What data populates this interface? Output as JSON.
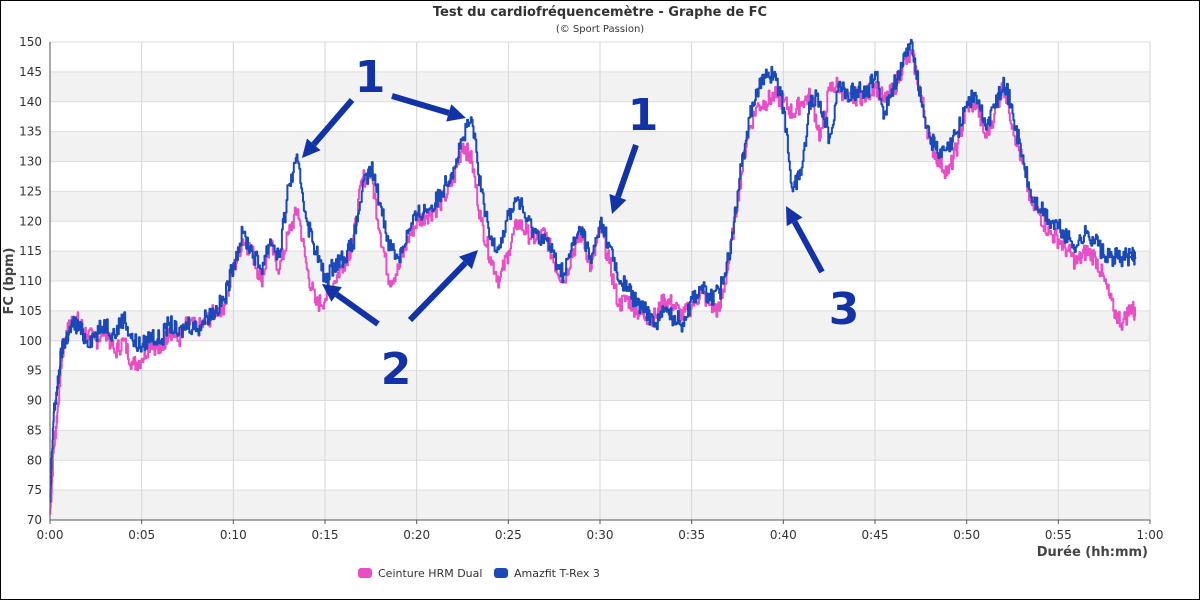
{
  "chart_data": {
    "type": "line",
    "title": "Test du cardiofréquencemètre - Graphe de FC",
    "subtitle": "(© Sport Passion)",
    "xlabel": "Durée (hh:mm)",
    "ylabel": "FC (bpm)",
    "xlim": [
      0,
      60
    ],
    "ylim": [
      70,
      150
    ],
    "grid": true,
    "legend_position": "bottom",
    "x_ticks": [
      {
        "v": 0,
        "label": "0:00"
      },
      {
        "v": 5,
        "label": "0:05"
      },
      {
        "v": 10,
        "label": "0:10"
      },
      {
        "v": 15,
        "label": "0:15"
      },
      {
        "v": 20,
        "label": "0:20"
      },
      {
        "v": 25,
        "label": "0:25"
      },
      {
        "v": 30,
        "label": "0:30"
      },
      {
        "v": 35,
        "label": "0:35"
      },
      {
        "v": 40,
        "label": "0:40"
      },
      {
        "v": 45,
        "label": "0:45"
      },
      {
        "v": 50,
        "label": "0:50"
      },
      {
        "v": 55,
        "label": "0:55"
      },
      {
        "v": 60,
        "label": "1:00"
      }
    ],
    "y_ticks": [
      70,
      75,
      80,
      85,
      90,
      95,
      100,
      105,
      110,
      115,
      120,
      125,
      130,
      135,
      140,
      145,
      150
    ],
    "series": [
      {
        "name": "Ceinture HRM Dual",
        "color": "#e84fc6",
        "x": [
          0,
          0.2,
          0.4,
          0.6,
          0.8,
          1.0,
          1.3,
          1.6,
          2.0,
          2.5,
          3.0,
          3.5,
          4.0,
          4.5,
          5.0,
          5.5,
          6.0,
          6.5,
          7.0,
          7.5,
          8.0,
          8.5,
          9.0,
          9.5,
          10.0,
          10.5,
          11.0,
          11.5,
          12.0,
          12.5,
          13.0,
          13.5,
          14.0,
          14.5,
          15.0,
          15.5,
          16.0,
          16.5,
          17.0,
          17.5,
          18.0,
          18.5,
          19.0,
          19.5,
          20.0,
          20.5,
          21.0,
          21.5,
          22.0,
          22.5,
          23.0,
          23.5,
          24.0,
          24.5,
          25.0,
          25.5,
          26.0,
          26.5,
          27.0,
          27.5,
          28.0,
          28.5,
          29.0,
          29.5,
          30.0,
          30.5,
          31.0,
          31.5,
          32.0,
          32.5,
          33.0,
          33.5,
          34.0,
          34.5,
          35.0,
          35.5,
          36.0,
          36.5,
          37.0,
          37.5,
          38.0,
          38.5,
          39.0,
          39.5,
          40.0,
          40.5,
          41.0,
          41.5,
          42.0,
          42.5,
          43.0,
          43.5,
          44.0,
          44.5,
          45.0,
          45.5,
          46.0,
          46.5,
          47.0,
          47.5,
          48.0,
          48.5,
          49.0,
          49.5,
          50.0,
          50.5,
          51.0,
          51.5,
          52.0,
          52.5,
          53.0,
          53.5,
          54.0,
          54.5,
          55.0,
          55.5,
          56.0,
          56.5,
          57.0,
          57.5,
          58.0,
          58.5,
          59.0,
          59.2
        ],
        "y": [
          71,
          82,
          88,
          96,
          100,
          102,
          104,
          103,
          101,
          100,
          102,
          98,
          100,
          96,
          97,
          100,
          98,
          102,
          100,
          103,
          102,
          103,
          105,
          106,
          112,
          117,
          115,
          110,
          116,
          112,
          118,
          122,
          112,
          106,
          107,
          110,
          113,
          116,
          127,
          128,
          118,
          110,
          112,
          117,
          120,
          121,
          122,
          124,
          127,
          133,
          130,
          120,
          114,
          110,
          115,
          120,
          118,
          117,
          118,
          113,
          110,
          115,
          118,
          112,
          119,
          113,
          106,
          107,
          105,
          104,
          104,
          107,
          106,
          104,
          106,
          108,
          106,
          105,
          113,
          124,
          134,
          139,
          140,
          141,
          140,
          138,
          140,
          141,
          134,
          142,
          143,
          140,
          141,
          141,
          143,
          140,
          142,
          146,
          148,
          141,
          133,
          130,
          128,
          133,
          139,
          140,
          134,
          138,
          143,
          136,
          130,
          123,
          121,
          118,
          117,
          115,
          113,
          115,
          114,
          110,
          105,
          103,
          106,
          104
        ]
      },
      {
        "name": "Amazfit T-Rex 3",
        "color": "#1a4ab8",
        "x": [
          0,
          0.2,
          0.4,
          0.6,
          0.8,
          1.0,
          1.3,
          1.6,
          2.0,
          2.5,
          3.0,
          3.5,
          4.0,
          4.5,
          5.0,
          5.5,
          6.0,
          6.5,
          7.0,
          7.5,
          8.0,
          8.5,
          9.0,
          9.5,
          10.0,
          10.5,
          11.0,
          11.5,
          12.0,
          12.5,
          13.0,
          13.5,
          14.0,
          14.5,
          15.0,
          15.5,
          16.0,
          16.5,
          17.0,
          17.5,
          18.0,
          18.5,
          19.0,
          19.5,
          20.0,
          20.5,
          21.0,
          21.5,
          22.0,
          22.5,
          23.0,
          23.5,
          24.0,
          24.5,
          25.0,
          25.5,
          26.0,
          26.5,
          27.0,
          27.5,
          28.0,
          28.5,
          29.0,
          29.5,
          30.0,
          30.5,
          31.0,
          31.5,
          32.0,
          32.5,
          33.0,
          33.5,
          34.0,
          34.5,
          35.0,
          35.5,
          36.0,
          36.5,
          37.0,
          37.5,
          38.0,
          38.5,
          39.0,
          39.5,
          40.0,
          40.5,
          41.0,
          41.5,
          42.0,
          42.5,
          43.0,
          43.5,
          44.0,
          44.5,
          45.0,
          45.5,
          46.0,
          46.5,
          47.0,
          47.5,
          48.0,
          48.5,
          49.0,
          49.5,
          50.0,
          50.5,
          51.0,
          51.5,
          52.0,
          52.5,
          53.0,
          53.5,
          54.0,
          54.5,
          55.0,
          55.5,
          56.0,
          56.5,
          57.0,
          57.5,
          58.0,
          58.5,
          59.0,
          59.2
        ],
        "y": [
          73,
          88,
          92,
          98,
          100,
          101,
          103,
          102,
          100,
          101,
          103,
          101,
          104,
          100,
          99,
          101,
          100,
          103,
          101,
          103,
          102,
          104,
          105,
          107,
          113,
          118,
          115,
          112,
          117,
          114,
          126,
          130,
          120,
          115,
          110,
          113,
          114,
          116,
          125,
          129,
          123,
          116,
          114,
          118,
          121,
          122,
          123,
          126,
          129,
          134,
          137,
          125,
          117,
          116,
          121,
          124,
          120,
          118,
          117,
          114,
          111,
          116,
          119,
          113,
          120,
          116,
          110,
          109,
          106,
          105,
          103,
          105,
          104,
          103,
          107,
          109,
          107,
          108,
          114,
          125,
          135,
          142,
          144,
          145,
          139,
          125,
          129,
          141,
          140,
          134,
          143,
          141,
          142,
          141,
          145,
          138,
          143,
          146,
          150,
          140,
          134,
          131,
          132,
          135,
          140,
          141,
          136,
          139,
          144,
          138,
          131,
          124,
          122,
          120,
          119,
          117,
          116,
          118,
          117,
          114,
          114,
          114,
          114,
          114
        ]
      }
    ],
    "annotations": [
      {
        "label": "1"
      },
      {
        "label": "1"
      },
      {
        "label": "2"
      },
      {
        "label": "3"
      }
    ]
  }
}
